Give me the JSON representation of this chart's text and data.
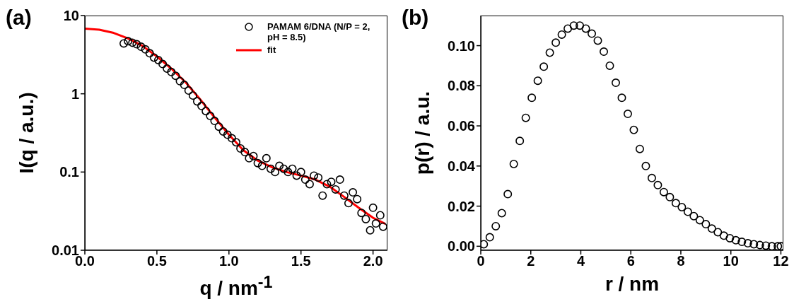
{
  "chart_data": [
    {
      "type": "scatter",
      "title": "(a)",
      "xlabel": "q / nm$^{-1}$",
      "ylabel": "I(q / a.u.)",
      "xlim": [
        0,
        2.1
      ],
      "xticks": [
        {
          "value": 0,
          "label": "0.0"
        },
        {
          "value": 0.5,
          "label": "0.5"
        },
        {
          "value": 1,
          "label": "1.0"
        },
        {
          "value": 1.5,
          "label": "1.5"
        },
        {
          "value": 2,
          "label": "2.0"
        }
      ],
      "ylim": [
        0.01,
        10
      ],
      "yticks": [
        0.01,
        0.1,
        1,
        10
      ],
      "log": "y",
      "legend": "top right",
      "series": [
        {
          "name": "PAMAM 6/DNA (N/P = 2, pH = 8.5)",
          "color": "#000000",
          "marker": "circle",
          "x": [
            0.27,
            0.3,
            0.33,
            0.36,
            0.39,
            0.42,
            0.45,
            0.48,
            0.51,
            0.54,
            0.57,
            0.6,
            0.63,
            0.66,
            0.69,
            0.72,
            0.75,
            0.78,
            0.81,
            0.84,
            0.87,
            0.9,
            0.93,
            0.96,
            0.99,
            1.02,
            1.05,
            1.08,
            1.11,
            1.14,
            1.17,
            1.2,
            1.23,
            1.26,
            1.29,
            1.32,
            1.35,
            1.38,
            1.41,
            1.44,
            1.47,
            1.5,
            1.53,
            1.56,
            1.59,
            1.62,
            1.65,
            1.68,
            1.71,
            1.74,
            1.77,
            1.8,
            1.83,
            1.86,
            1.89,
            1.92,
            1.95,
            1.98,
            2.0,
            2.02,
            2.05,
            2.07
          ],
          "values": [
            4.4,
            4.7,
            4.5,
            4.3,
            4.0,
            3.7,
            3.3,
            2.9,
            2.7,
            2.4,
            2.1,
            1.9,
            1.7,
            1.45,
            1.3,
            1.1,
            0.95,
            0.8,
            0.7,
            0.6,
            0.52,
            0.45,
            0.38,
            0.33,
            0.3,
            0.27,
            0.24,
            0.2,
            0.18,
            0.15,
            0.16,
            0.13,
            0.12,
            0.15,
            0.11,
            0.1,
            0.12,
            0.11,
            0.1,
            0.11,
            0.09,
            0.1,
            0.08,
            0.07,
            0.09,
            0.085,
            0.05,
            0.07,
            0.075,
            0.06,
            0.08,
            0.05,
            0.04,
            0.055,
            0.045,
            0.03,
            0.025,
            0.018,
            0.035,
            0.022,
            0.028,
            0.02
          ]
        },
        {
          "type": "line",
          "name": "fit",
          "color": "#ff0000",
          "marker": "none",
          "line_style": "solid",
          "x": [
            0,
            0.1,
            0.2,
            0.3,
            0.4,
            0.5,
            0.6,
            0.7,
            0.8,
            0.9,
            1.0,
            1.1,
            1.2,
            1.3,
            1.4,
            1.5,
            1.6,
            1.7,
            1.8,
            1.9,
            2.0,
            2.08
          ],
          "values": [
            6.8,
            6.6,
            6.0,
            5.1,
            4.1,
            3.0,
            2.1,
            1.4,
            0.85,
            0.5,
            0.3,
            0.19,
            0.14,
            0.115,
            0.1,
            0.09,
            0.08,
            0.065,
            0.048,
            0.035,
            0.026,
            0.022
          ]
        }
      ]
    },
    {
      "type": "scatter",
      "title": "(b)",
      "xlabel": "r / nm",
      "ylabel": "p(r) / a.u.",
      "xlim": [
        0,
        12.1
      ],
      "xticks": [
        0,
        2,
        4,
        6,
        8,
        10,
        12
      ],
      "ylim": [
        -0.002,
        0.115
      ],
      "yticks": [
        {
          "value": 0,
          "label": "0.00"
        },
        {
          "value": 0.02,
          "label": "0.02"
        },
        {
          "value": 0.04,
          "label": "0.04"
        },
        {
          "value": 0.06,
          "label": "0.06"
        },
        {
          "value": 0.08,
          "label": "0.08"
        },
        {
          "value": 0.1,
          "label": "0.10"
        }
      ],
      "series": [
        {
          "color": "#000000",
          "marker": "circle",
          "x": [
            0.12,
            0.36,
            0.6,
            0.84,
            1.08,
            1.32,
            1.56,
            1.8,
            2.04,
            2.28,
            2.52,
            2.76,
            3.0,
            3.24,
            3.48,
            3.72,
            3.96,
            4.2,
            4.44,
            4.68,
            4.92,
            5.16,
            5.4,
            5.64,
            5.88,
            6.12,
            6.36,
            6.6,
            6.84,
            7.08,
            7.32,
            7.56,
            7.8,
            8.04,
            8.28,
            8.52,
            8.76,
            9.0,
            9.24,
            9.48,
            9.72,
            9.96,
            10.2,
            10.44,
            10.68,
            10.92,
            11.16,
            11.4,
            11.64,
            11.88,
            12.0
          ],
          "values": [
            0.001,
            0.0045,
            0.01,
            0.0165,
            0.026,
            0.041,
            0.0525,
            0.064,
            0.074,
            0.0825,
            0.0895,
            0.0965,
            0.1015,
            0.1055,
            0.1085,
            0.11,
            0.11,
            0.1085,
            0.106,
            0.1025,
            0.097,
            0.09,
            0.0815,
            0.074,
            0.066,
            0.058,
            0.0485,
            0.04,
            0.034,
            0.0305,
            0.027,
            0.0245,
            0.0215,
            0.0195,
            0.0172,
            0.015,
            0.013,
            0.011,
            0.0088,
            0.007,
            0.0053,
            0.004,
            0.003,
            0.0022,
            0.0015,
            0.001,
            0.0006,
            0.0003,
            0.0,
            0.0,
            0.0
          ]
        }
      ]
    }
  ]
}
